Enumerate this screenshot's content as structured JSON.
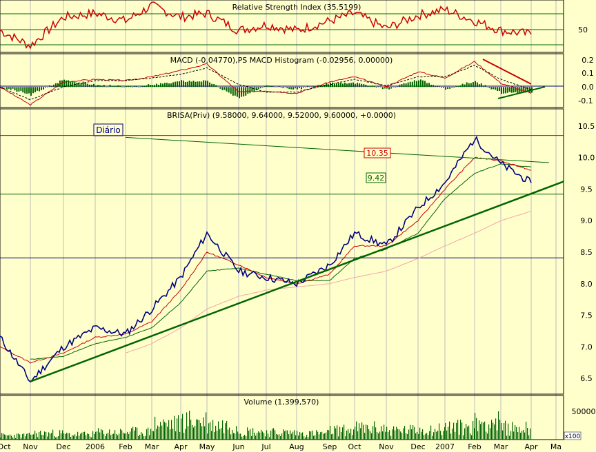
{
  "panels": {
    "rsi": {
      "title": "Relative Strength Index (35.5199)",
      "ticks": [
        "50"
      ],
      "value": 35.5199
    },
    "macd": {
      "title": "MACD (-0.04770),PS MACD Histogram (-0.02956, 0.00000)",
      "ticks": [
        "0.2",
        "0.1",
        "0.0",
        "-0.1"
      ]
    },
    "price": {
      "title": "BRISA(Priv) (9.58000, 9.64000, 9.52000, 9.60000, +0.0000)",
      "label_box": "Diário",
      "ticks": [
        "10.5",
        "10.0",
        "9.5",
        "9.0",
        "8.5",
        "8.0",
        "7.5",
        "7.0",
        "6.5"
      ],
      "level_labels": [
        "10.35",
        "9.42"
      ]
    },
    "volume": {
      "title": "Volume (1,399,570)",
      "ticks": [
        "50000"
      ],
      "multiplier": "x100"
    }
  },
  "x_axis": {
    "labels": [
      "Oct",
      "Nov",
      "Dec",
      "2006",
      "Feb",
      "Mar",
      "Apr",
      "May",
      "Jun",
      "Jul",
      "Aug",
      "Sep",
      "Oct",
      "Nov",
      "Dec",
      "2007",
      "Feb",
      "Mar",
      "Apr",
      "Ma"
    ]
  },
  "colors": {
    "background": "#ffffcc",
    "grid": "#bdbdbd",
    "price": "#000080",
    "ma_red": "#cc0000",
    "ma_green": "#006400",
    "ma_pink": "#f4a6a6",
    "trendline": "#006400",
    "rsi": "#cc0000",
    "histogram": "#006400",
    "volume": "#006400",
    "level_red": "#cc0000",
    "level_green": "#006400",
    "level_blue": "#000080"
  },
  "chart_data": [
    {
      "type": "line",
      "name": "Relative Strength Index",
      "title": "Relative Strength Index (35.5199)",
      "x": [
        "Oct",
        "Nov",
        "Dec",
        "2006",
        "Feb",
        "Mar",
        "Apr",
        "May",
        "Jun",
        "Jul",
        "Aug",
        "Sep",
        "Oct",
        "Nov",
        "Dec",
        "2007",
        "Feb",
        "Mar",
        "Apr"
      ],
      "series": [
        {
          "values": [
            48,
            32,
            62,
            66,
            58,
            74,
            62,
            66,
            48,
            54,
            48,
            58,
            66,
            50,
            64,
            70,
            58,
            48,
            44
          ]
        }
      ],
      "ylim": [
        25,
        80
      ],
      "reference_lines": [
        30,
        50,
        70
      ]
    },
    {
      "type": "line",
      "name": "MACD",
      "title": "MACD (-0.04770),PS MACD Histogram (-0.02956, 0.00000)",
      "x": [
        "Oct",
        "Nov",
        "Dec",
        "2006",
        "Feb",
        "Mar",
        "Apr",
        "May",
        "Jun",
        "Jul",
        "Aug",
        "Sep",
        "Oct",
        "Nov",
        "Dec",
        "2007",
        "Feb",
        "Mar",
        "Apr"
      ],
      "series": [
        {
          "values": [
            0.0,
            -0.14,
            0.04,
            0.06,
            0.05,
            0.08,
            0.13,
            0.18,
            -0.04,
            -0.03,
            -0.05,
            0.04,
            0.08,
            0.0,
            0.12,
            0.07,
            0.2,
            0.03,
            -0.05
          ]
        },
        {
          "values": [
            0.0,
            -0.1,
            0.0,
            0.05,
            0.05,
            0.07,
            0.1,
            0.15,
            0.02,
            -0.04,
            -0.04,
            0.02,
            0.06,
            0.01,
            0.08,
            0.08,
            0.17,
            0.06,
            -0.02
          ]
        }
      ],
      "ylim": [
        -0.15,
        0.25
      ]
    },
    {
      "type": "line",
      "name": "BRISA(Priv)",
      "title": "BRISA(Priv) (9.58000, 9.64000, 9.52000, 9.60000, +0.0000)",
      "x": [
        "Oct",
        "Nov",
        "Dec",
        "2006",
        "Feb",
        "Mar",
        "Apr",
        "May",
        "Jun",
        "Jul",
        "Aug",
        "Sep",
        "Oct",
        "Nov",
        "Dec",
        "2007",
        "Feb",
        "Mar",
        "Apr"
      ],
      "series": [
        {
          "values": [
            7.15,
            6.45,
            7.0,
            7.3,
            7.2,
            7.6,
            8.1,
            8.8,
            8.2,
            8.1,
            8.0,
            8.3,
            8.8,
            8.6,
            9.2,
            9.6,
            10.3,
            9.9,
            9.6
          ]
        },
        {
          "values": [
            7.0,
            6.75,
            6.9,
            7.15,
            7.2,
            7.4,
            7.9,
            8.5,
            8.3,
            8.1,
            8.0,
            8.15,
            8.6,
            8.6,
            9.0,
            9.5,
            10.0,
            9.95,
            9.8
          ]
        },
        {
          "values": [
            null,
            6.8,
            6.85,
            7.05,
            7.15,
            7.3,
            7.7,
            8.2,
            8.25,
            8.15,
            8.05,
            8.05,
            8.4,
            8.55,
            8.8,
            9.35,
            9.75,
            9.9,
            9.85
          ]
        },
        {
          "values": [
            null,
            null,
            null,
            null,
            6.9,
            7.05,
            7.3,
            7.6,
            7.8,
            7.9,
            7.95,
            8.0,
            8.1,
            8.2,
            8.4,
            8.6,
            8.8,
            9.0,
            9.15
          ]
        }
      ],
      "ylim": [
        6.25,
        10.75
      ],
      "levels": [
        10.35,
        9.42,
        8.41
      ],
      "trendlines": [
        {
          "from": {
            "x": "Nov",
            "y": 6.45
          },
          "to": {
            "x": "Ma",
            "y": 9.62
          }
        },
        {
          "from": {
            "x": "Feb",
            "y": 10.32
          },
          "to": {
            "x": "Apr",
            "y": 9.92
          }
        }
      ]
    },
    {
      "type": "bar",
      "name": "Volume",
      "title": "Volume (1,399,570)",
      "x": [
        "Oct",
        "Nov",
        "Dec",
        "2006",
        "Feb",
        "Mar",
        "Apr",
        "May",
        "Jun",
        "Jul",
        "Aug",
        "Sep",
        "Oct",
        "Nov",
        "Dec",
        "2007",
        "Feb",
        "Mar",
        "Apr"
      ],
      "series": [
        {
          "values": [
            8000,
            12000,
            10000,
            14000,
            15000,
            30000,
            36000,
            28000,
            16000,
            14000,
            12000,
            18000,
            22000,
            18000,
            20000,
            24000,
            34000,
            22000,
            18000
          ]
        }
      ],
      "ylim": [
        0,
        75000
      ]
    }
  ]
}
